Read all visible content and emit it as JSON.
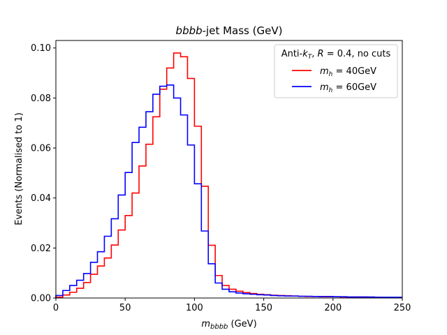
{
  "chart_data": {
    "type": "step-histogram",
    "title_italic": "bbbb",
    "title_rest": "-jet Mass (GeV)",
    "xlabel_italic": "m",
    "xlabel_sub": "bbbb",
    "xlabel_rest": " (GeV)",
    "ylabel": "Events (Normalised to 1)",
    "xlim": [
      0,
      250
    ],
    "ylim": [
      0,
      0.103
    ],
    "xticks": [
      0,
      50,
      100,
      150,
      200,
      250
    ],
    "xtick_labels": [
      "0",
      "50",
      "100",
      "150",
      "200",
      "250"
    ],
    "yticks": [
      0,
      0.02,
      0.04,
      0.06,
      0.08,
      0.1
    ],
    "ytick_labels": [
      "0.00",
      "0.02",
      "0.04",
      "0.06",
      "0.08",
      "0.10"
    ],
    "grid": false,
    "legend_position": "top-right",
    "legend_title": {
      "prefix": "Anti-",
      "k_italic": "k",
      "k_sub": "T",
      "mid": ", ",
      "R_italic": "R",
      "suffix": " = 0.4, no cuts"
    },
    "bin_edges": [
      0,
      5,
      10,
      15,
      20,
      25,
      30,
      35,
      40,
      45,
      50,
      55,
      60,
      65,
      70,
      75,
      80,
      85,
      90,
      95,
      100,
      105,
      110,
      115,
      120,
      125,
      130,
      135,
      140,
      145,
      150,
      155,
      160,
      165,
      170,
      175,
      180,
      185,
      190,
      195,
      200,
      205,
      210,
      215,
      220,
      225,
      230,
      235,
      240,
      245,
      250
    ],
    "series": [
      {
        "name_italic": "m",
        "name_sub": "h",
        "name_rest": " = 40GeV",
        "color": "#ff0000",
        "values": [
          0.0003,
          0.0012,
          0.0023,
          0.0039,
          0.0062,
          0.0095,
          0.0128,
          0.016,
          0.0212,
          0.0272,
          0.033,
          0.042,
          0.0528,
          0.0615,
          0.0725,
          0.0835,
          0.092,
          0.098,
          0.0965,
          0.0878,
          0.0687,
          0.0447,
          0.0211,
          0.009,
          0.005,
          0.0035,
          0.0027,
          0.0022,
          0.0018,
          0.0015,
          0.0013,
          0.0011,
          0.001,
          0.0009,
          0.0008,
          0.0007,
          0.0006,
          0.0006,
          0.0005,
          0.0005,
          0.0005,
          0.0004,
          0.0004,
          0.0004,
          0.0004,
          0.0003,
          0.0003,
          0.0002,
          0.0002,
          0.0002
        ]
      },
      {
        "name_italic": "m",
        "name_sub": "h",
        "name_rest": " = 60GeV",
        "color": "#0000ff",
        "values": [
          0.001,
          0.003,
          0.005,
          0.0071,
          0.0098,
          0.0143,
          0.0185,
          0.0247,
          0.0317,
          0.0412,
          0.0502,
          0.0622,
          0.0683,
          0.0745,
          0.0815,
          0.0847,
          0.0852,
          0.08,
          0.0732,
          0.0612,
          0.0457,
          0.0268,
          0.0137,
          0.006,
          0.0035,
          0.0025,
          0.002,
          0.0017,
          0.0015,
          0.0013,
          0.0012,
          0.001,
          0.0009,
          0.0008,
          0.0008,
          0.0007,
          0.0007,
          0.0006,
          0.0006,
          0.0006,
          0.0005,
          0.0005,
          0.0004,
          0.0004,
          0.0004,
          0.0004,
          0.0003,
          0.0003,
          0.0003,
          0.0003
        ]
      }
    ]
  }
}
